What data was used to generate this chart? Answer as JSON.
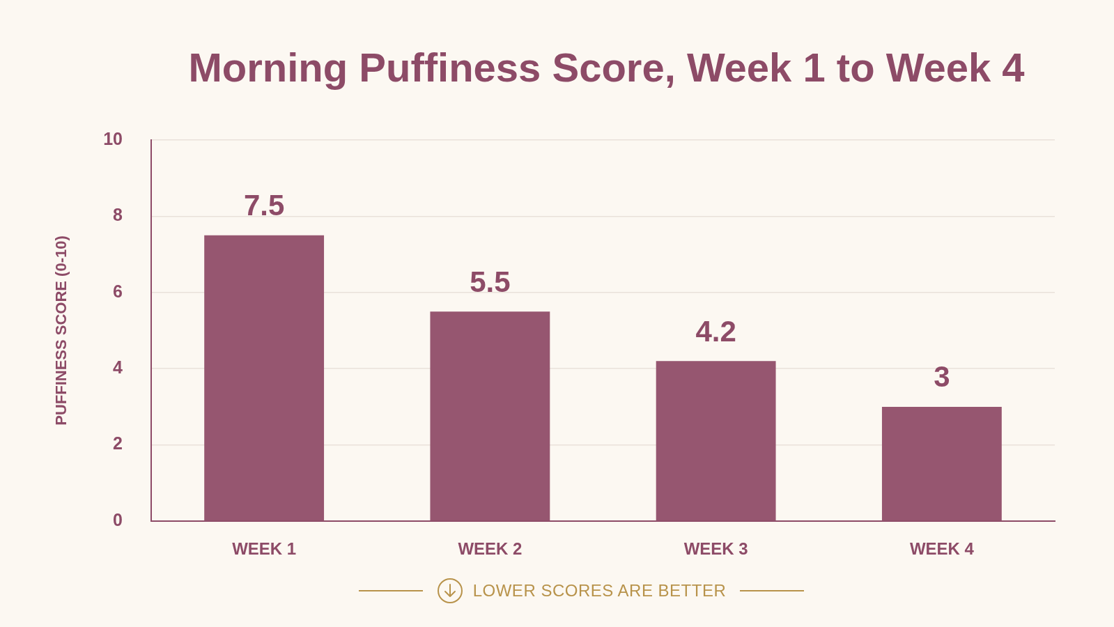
{
  "chart_data": {
    "type": "bar",
    "title": "Morning Puffiness Score, Week 1 to Week 4",
    "ylabel": "PUFFINESS SCORE (0-10)",
    "categories": [
      "WEEK 1",
      "WEEK 2",
      "WEEK 3",
      "WEEK 4"
    ],
    "values": [
      7.5,
      5.5,
      4.2,
      3
    ],
    "color": "#965670",
    "ylim": [
      0,
      10
    ],
    "yticks": [
      0,
      2,
      4,
      6,
      8,
      10
    ],
    "grid": "y",
    "data_labels": true,
    "annotations": [
      "LOWER SCORES ARE BETTER"
    ]
  }
}
